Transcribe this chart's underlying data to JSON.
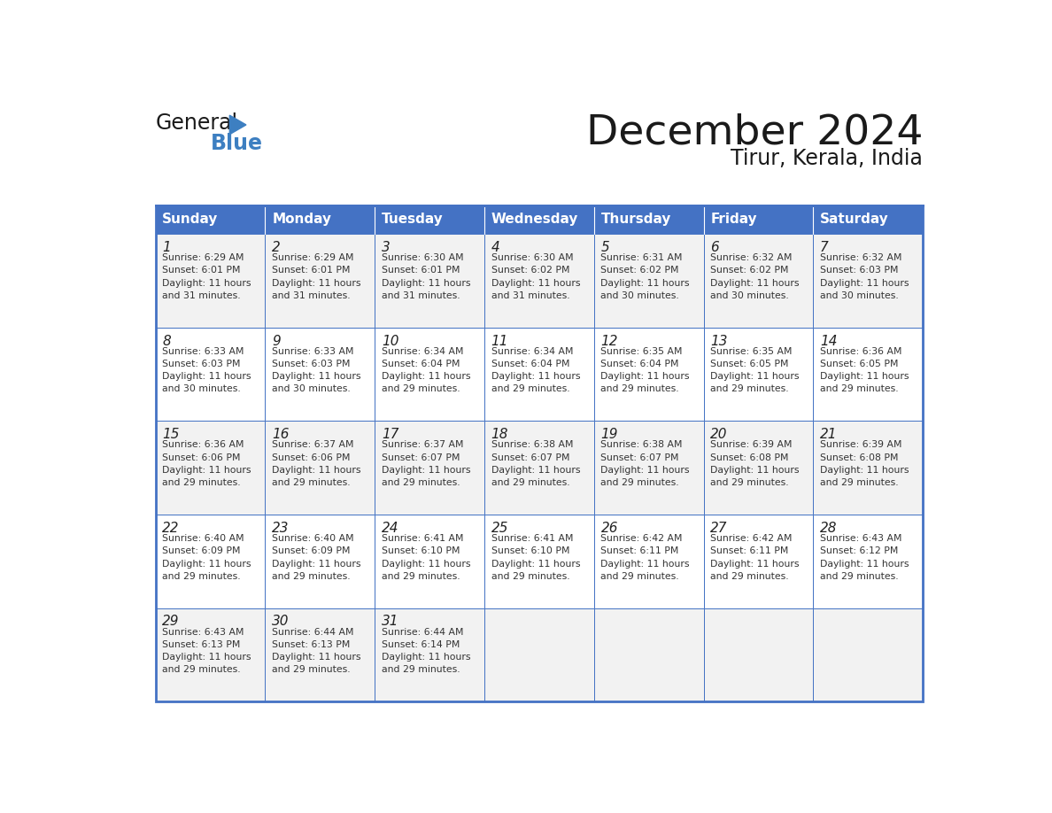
{
  "title": "December 2024",
  "subtitle": "Tirur, Kerala, India",
  "header_bg": "#4472C4",
  "header_text_color": "#FFFFFF",
  "border_color": "#4472C4",
  "day_names": [
    "Sunday",
    "Monday",
    "Tuesday",
    "Wednesday",
    "Thursday",
    "Friday",
    "Saturday"
  ],
  "days": [
    {
      "day": 1,
      "col": 0,
      "row": 0,
      "sunrise": "6:29 AM",
      "sunset": "6:01 PM",
      "daylight": "11 hours and 31 minutes."
    },
    {
      "day": 2,
      "col": 1,
      "row": 0,
      "sunrise": "6:29 AM",
      "sunset": "6:01 PM",
      "daylight": "11 hours and 31 minutes."
    },
    {
      "day": 3,
      "col": 2,
      "row": 0,
      "sunrise": "6:30 AM",
      "sunset": "6:01 PM",
      "daylight": "11 hours and 31 minutes."
    },
    {
      "day": 4,
      "col": 3,
      "row": 0,
      "sunrise": "6:30 AM",
      "sunset": "6:02 PM",
      "daylight": "11 hours and 31 minutes."
    },
    {
      "day": 5,
      "col": 4,
      "row": 0,
      "sunrise": "6:31 AM",
      "sunset": "6:02 PM",
      "daylight": "11 hours and 30 minutes."
    },
    {
      "day": 6,
      "col": 5,
      "row": 0,
      "sunrise": "6:32 AM",
      "sunset": "6:02 PM",
      "daylight": "11 hours and 30 minutes."
    },
    {
      "day": 7,
      "col": 6,
      "row": 0,
      "sunrise": "6:32 AM",
      "sunset": "6:03 PM",
      "daylight": "11 hours and 30 minutes."
    },
    {
      "day": 8,
      "col": 0,
      "row": 1,
      "sunrise": "6:33 AM",
      "sunset": "6:03 PM",
      "daylight": "11 hours and 30 minutes."
    },
    {
      "day": 9,
      "col": 1,
      "row": 1,
      "sunrise": "6:33 AM",
      "sunset": "6:03 PM",
      "daylight": "11 hours and 30 minutes."
    },
    {
      "day": 10,
      "col": 2,
      "row": 1,
      "sunrise": "6:34 AM",
      "sunset": "6:04 PM",
      "daylight": "11 hours and 29 minutes."
    },
    {
      "day": 11,
      "col": 3,
      "row": 1,
      "sunrise": "6:34 AM",
      "sunset": "6:04 PM",
      "daylight": "11 hours and 29 minutes."
    },
    {
      "day": 12,
      "col": 4,
      "row": 1,
      "sunrise": "6:35 AM",
      "sunset": "6:04 PM",
      "daylight": "11 hours and 29 minutes."
    },
    {
      "day": 13,
      "col": 5,
      "row": 1,
      "sunrise": "6:35 AM",
      "sunset": "6:05 PM",
      "daylight": "11 hours and 29 minutes."
    },
    {
      "day": 14,
      "col": 6,
      "row": 1,
      "sunrise": "6:36 AM",
      "sunset": "6:05 PM",
      "daylight": "11 hours and 29 minutes."
    },
    {
      "day": 15,
      "col": 0,
      "row": 2,
      "sunrise": "6:36 AM",
      "sunset": "6:06 PM",
      "daylight": "11 hours and 29 minutes."
    },
    {
      "day": 16,
      "col": 1,
      "row": 2,
      "sunrise": "6:37 AM",
      "sunset": "6:06 PM",
      "daylight": "11 hours and 29 minutes."
    },
    {
      "day": 17,
      "col": 2,
      "row": 2,
      "sunrise": "6:37 AM",
      "sunset": "6:07 PM",
      "daylight": "11 hours and 29 minutes."
    },
    {
      "day": 18,
      "col": 3,
      "row": 2,
      "sunrise": "6:38 AM",
      "sunset": "6:07 PM",
      "daylight": "11 hours and 29 minutes."
    },
    {
      "day": 19,
      "col": 4,
      "row": 2,
      "sunrise": "6:38 AM",
      "sunset": "6:07 PM",
      "daylight": "11 hours and 29 minutes."
    },
    {
      "day": 20,
      "col": 5,
      "row": 2,
      "sunrise": "6:39 AM",
      "sunset": "6:08 PM",
      "daylight": "11 hours and 29 minutes."
    },
    {
      "day": 21,
      "col": 6,
      "row": 2,
      "sunrise": "6:39 AM",
      "sunset": "6:08 PM",
      "daylight": "11 hours and 29 minutes."
    },
    {
      "day": 22,
      "col": 0,
      "row": 3,
      "sunrise": "6:40 AM",
      "sunset": "6:09 PM",
      "daylight": "11 hours and 29 minutes."
    },
    {
      "day": 23,
      "col": 1,
      "row": 3,
      "sunrise": "6:40 AM",
      "sunset": "6:09 PM",
      "daylight": "11 hours and 29 minutes."
    },
    {
      "day": 24,
      "col": 2,
      "row": 3,
      "sunrise": "6:41 AM",
      "sunset": "6:10 PM",
      "daylight": "11 hours and 29 minutes."
    },
    {
      "day": 25,
      "col": 3,
      "row": 3,
      "sunrise": "6:41 AM",
      "sunset": "6:10 PM",
      "daylight": "11 hours and 29 minutes."
    },
    {
      "day": 26,
      "col": 4,
      "row": 3,
      "sunrise": "6:42 AM",
      "sunset": "6:11 PM",
      "daylight": "11 hours and 29 minutes."
    },
    {
      "day": 27,
      "col": 5,
      "row": 3,
      "sunrise": "6:42 AM",
      "sunset": "6:11 PM",
      "daylight": "11 hours and 29 minutes."
    },
    {
      "day": 28,
      "col": 6,
      "row": 3,
      "sunrise": "6:43 AM",
      "sunset": "6:12 PM",
      "daylight": "11 hours and 29 minutes."
    },
    {
      "day": 29,
      "col": 0,
      "row": 4,
      "sunrise": "6:43 AM",
      "sunset": "6:13 PM",
      "daylight": "11 hours and 29 minutes."
    },
    {
      "day": 30,
      "col": 1,
      "row": 4,
      "sunrise": "6:44 AM",
      "sunset": "6:13 PM",
      "daylight": "11 hours and 29 minutes."
    },
    {
      "day": 31,
      "col": 2,
      "row": 4,
      "sunrise": "6:44 AM",
      "sunset": "6:14 PM",
      "daylight": "11 hours and 29 minutes."
    }
  ],
  "num_rows": 5,
  "logo_general_color": "#1a1a1a",
  "logo_blue_color": "#3d7fc1",
  "logo_triangle_color": "#3d7fc1",
  "cell_bg_light": "#F2F2F2",
  "cell_bg_white": "#FFFFFF"
}
